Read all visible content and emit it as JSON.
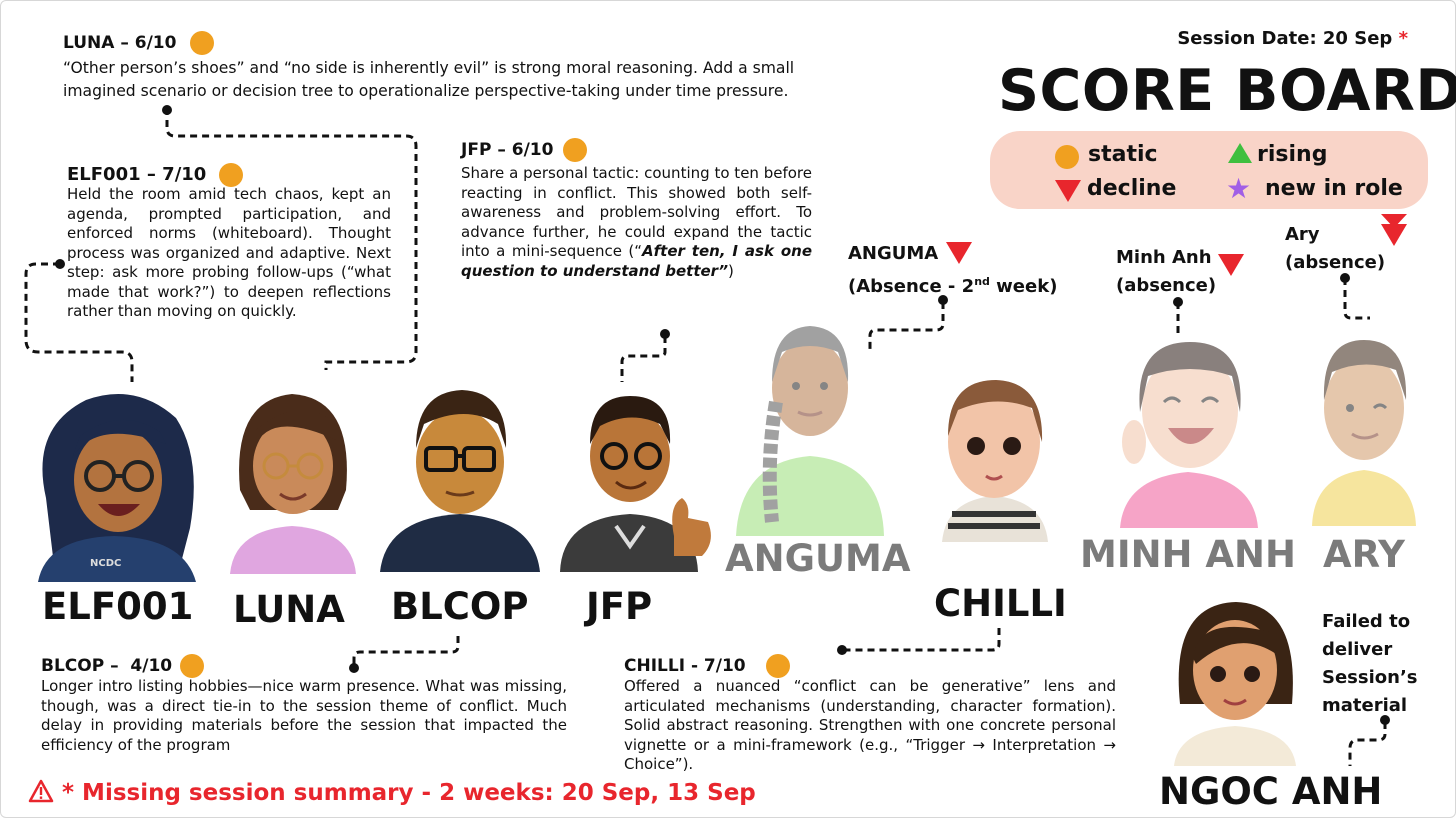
{
  "header": {
    "session_date": "Session Date: 20 Sep",
    "session_date_mark": "*",
    "title": "SCORE BOARD"
  },
  "legend": {
    "static": "static",
    "rising": "rising",
    "decline": "decline",
    "new_in_role": "new in role",
    "colors": {
      "static": "#f0a020",
      "rising": "#3fbf3f",
      "decline": "#e8262d",
      "new_in_role": "#a15fe6"
    }
  },
  "comments": {
    "luna": {
      "title": "LUNA – 6/10",
      "status": "static",
      "body": "“Other person’s shoes” and “no side is inherently evil” is strong moral reasoning. Add a small imagined scenario or decision tree to operationalize perspective-taking under time pressure."
    },
    "elf001": {
      "title": "ELF001 – 7/10",
      "status": "static",
      "body": "Held the room amid tech chaos, kept an agenda, prompted participation, and enforced norms (whiteboard). Thought process was organized and adaptive. Next step: ask more probing follow-ups (“what made that work?”) to deepen reflections rather than moving on quickly."
    },
    "jfp": {
      "title": "JFP – 6/10",
      "status": "static",
      "body_before": "Share a personal tactic: counting to ten before reacting in conflict. This showed both self-awareness and problem-solving effort. To advance further, he could expand the tactic into a mini-sequence (“",
      "body_em": "After ten, I ask one question to understand better”",
      "body_after": ")"
    },
    "blcop": {
      "title": "BLCOP –  4/10",
      "status": "static",
      "body": "Longer intro listing hobbies—nice warm presence. What was missing, though, was a direct tie-in to the session theme of conflict. Much delay in providing materials before the session that impacted the efficiency of the program"
    },
    "chilli": {
      "title": "CHILLI - 7/10",
      "status": "static",
      "body": "Offered a nuanced “conflict can be generative” lens and articulated mechanisms (understanding, character formation). Solid abstract reasoning. Strengthen with one concrete personal vignette or a mini-framework (e.g., “Trigger → Interpretation → Choice”)."
    }
  },
  "absences": {
    "anguma": {
      "name": "ANGUMA",
      "note_before": "(Absence - 2",
      "note_sup": "nd",
      "note_after": " week)",
      "status": "decline"
    },
    "minh_anh": {
      "name": "Minh Anh",
      "note": "(absence)",
      "status": "decline"
    },
    "ary": {
      "name": "Ary",
      "note": "(absence)",
      "status": "decline"
    }
  },
  "ngoc_note": "Failed to deliver Session’s material",
  "names": {
    "elf001": "ELF001",
    "luna": "LUNA",
    "blcop": "BLCOP",
    "jfp": "JFP",
    "anguma": "ANGUMA",
    "chilli": "CHILLI",
    "minh_anh": "MINH ANH",
    "ary": "ARY",
    "ngoc_anh": "NGOC ANH"
  },
  "shirt_print": "NCDC",
  "footer": {
    "warning_icon": "warning-triangle-icon",
    "text": "* Missing session summary - 2 weeks: 20 Sep, 13 Sep",
    "color": "#e8262d"
  }
}
